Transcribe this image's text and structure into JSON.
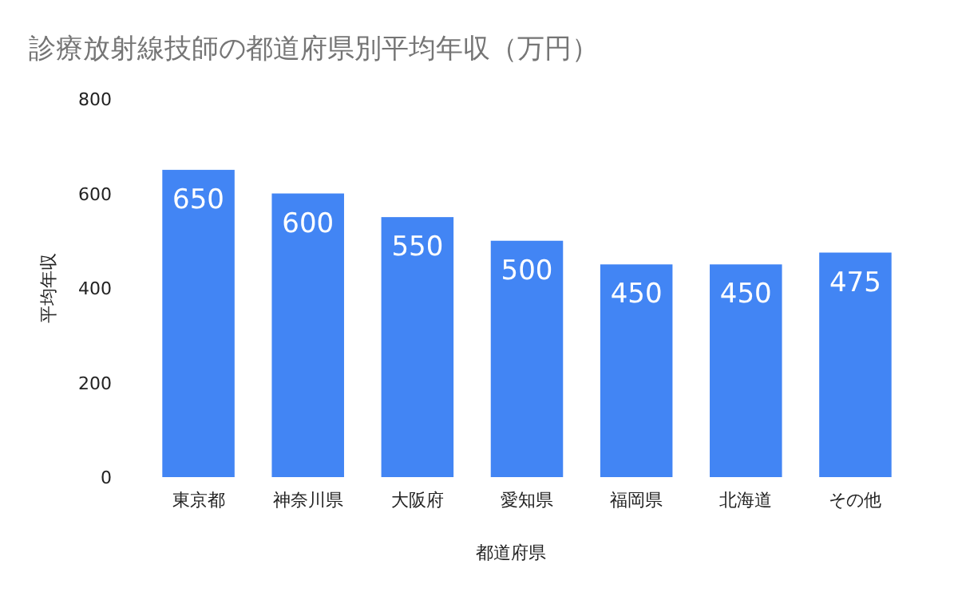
{
  "chart_data": {
    "type": "bar",
    "title": "診療放射線技師の都道府県別平均年収（万円）",
    "xlabel": "都道府県",
    "ylabel": "平均年収",
    "categories": [
      "東京都",
      "神奈川県",
      "大阪府",
      "愛知県",
      "福岡県",
      "北海道",
      "その他"
    ],
    "values": [
      650,
      600,
      550,
      500,
      450,
      450,
      475
    ],
    "color": "#4285f4",
    "ylim": [
      0,
      800
    ],
    "yticks": [
      0,
      200,
      400,
      600,
      800
    ],
    "grid": false,
    "data_labels": true
  }
}
